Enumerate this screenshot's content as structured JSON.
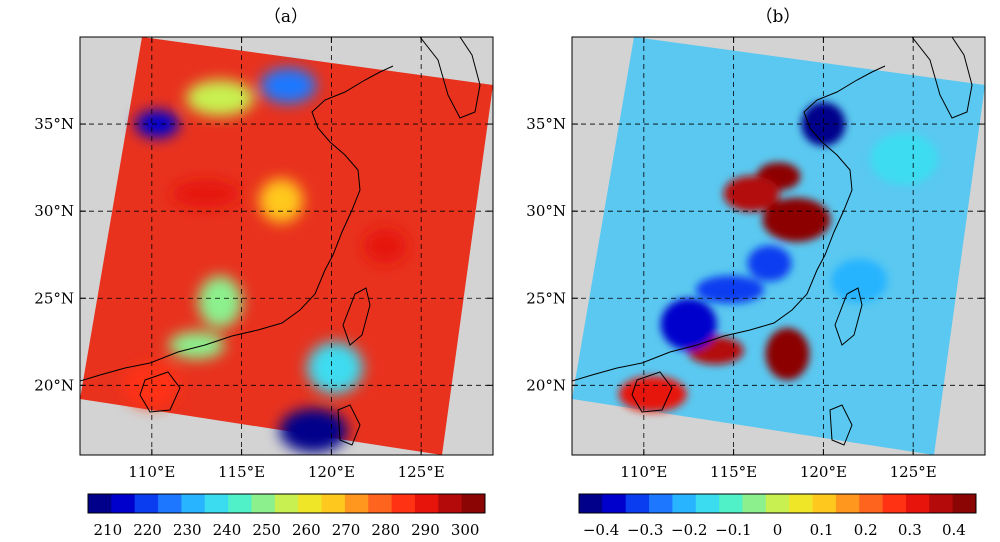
{
  "figure": {
    "panels": [
      {
        "label": "（a）",
        "lon_ticks": [
          "110°E",
          "115°E",
          "120°E",
          "125°E"
        ],
        "lat_ticks": [
          "20°N",
          "25°N",
          "30°N",
          "35°N"
        ],
        "colorbar_ticks": [
          "210",
          "220",
          "230",
          "240",
          "250",
          "260",
          "270",
          "280",
          "290",
          "300"
        ]
      },
      {
        "label": "（b）",
        "lon_ticks": [
          "110°E",
          "115°E",
          "120°E",
          "125°E"
        ],
        "lat_ticks": [
          "20°N",
          "25°N",
          "30°N",
          "35°N"
        ],
        "colorbar_ticks": [
          "−0.4",
          "−0.3",
          "−0.2",
          "−0.1",
          "0",
          "0.1",
          "0.2",
          "0.3",
          "0.4"
        ]
      }
    ]
  },
  "chart_data": [
    {
      "type": "heatmap",
      "title": "（a）",
      "xlabel": "",
      "ylabel": "",
      "xlim": [
        106,
        129
      ],
      "ylim": [
        16,
        40
      ],
      "x_ticks": [
        110,
        115,
        120,
        125
      ],
      "y_ticks": [
        20,
        25,
        30,
        35
      ],
      "grid": true,
      "grid_style": "dashed",
      "colorbar": {
        "orientation": "horizontal",
        "position": "bottom",
        "range": [
          205,
          305
        ],
        "ticks": [
          210,
          220,
          230,
          240,
          250,
          260,
          270,
          280,
          290,
          300
        ]
      },
      "colormap": [
        "#00008b",
        "#0000cd",
        "#0a3cf0",
        "#1e78ff",
        "#28b4ff",
        "#3cdcf0",
        "#50f0c8",
        "#8cf08c",
        "#c8f050",
        "#f0e628",
        "#ffc81e",
        "#ff961e",
        "#ff641e",
        "#ff3214",
        "#e6140a",
        "#b40a0a",
        "#8c0505"
      ],
      "swath_corners_lonlat": {
        "top_left": [
          108.5,
          39.0
        ],
        "top_right": [
          128.6,
          37.1
        ],
        "bottom_right": [
          126.4,
          16.8
        ],
        "bottom_left": [
          106.0,
          18.0
        ]
      },
      "field_features": [
        {
          "lon": 110.3,
          "lat": 35.0,
          "value": 215
        },
        {
          "lon": 117.6,
          "lat": 37.2,
          "value": 225
        },
        {
          "lon": 119.0,
          "lat": 17.4,
          "value": 210
        },
        {
          "lon": 113.8,
          "lat": 24.8,
          "value": 250
        },
        {
          "lon": 112.5,
          "lat": 22.3,
          "value": 250
        },
        {
          "lon": 113.8,
          "lat": 36.5,
          "value": 255
        },
        {
          "lon": 117.2,
          "lat": 30.6,
          "value": 265
        },
        {
          "lon": 120.2,
          "lat": 21.0,
          "value": 240
        },
        {
          "lon": 113.0,
          "lat": 31.0,
          "value": 290
        },
        {
          "lon": 123.0,
          "lat": 28.0,
          "value": 290
        },
        {
          "lon": 110.0,
          "lat": 20.0,
          "value": 285
        }
      ]
    },
    {
      "type": "heatmap",
      "title": "（b）",
      "xlabel": "",
      "ylabel": "",
      "xlim": [
        106,
        129
      ],
      "ylim": [
        16,
        40
      ],
      "x_ticks": [
        110,
        115,
        120,
        125
      ],
      "y_ticks": [
        20,
        25,
        30,
        35
      ],
      "grid": true,
      "grid_style": "dashed",
      "colorbar": {
        "orientation": "horizontal",
        "position": "bottom",
        "range": [
          -0.45,
          0.45
        ],
        "ticks": [
          -0.4,
          -0.3,
          -0.2,
          -0.1,
          0,
          0.1,
          0.2,
          0.3,
          0.4
        ]
      },
      "colormap": [
        "#00008b",
        "#0000cd",
        "#0a3cf0",
        "#1e78ff",
        "#28b4ff",
        "#3cdcf0",
        "#50f0c8",
        "#8cf08c",
        "#c8f050",
        "#f0e628",
        "#ffc81e",
        "#ff961e",
        "#ff641e",
        "#ff3214",
        "#e6140a",
        "#b40a0a",
        "#8c0505"
      ],
      "swath_corners_lonlat": {
        "top_left": [
          108.5,
          39.0
        ],
        "top_right": [
          128.6,
          37.1
        ],
        "bottom_right": [
          126.4,
          16.8
        ],
        "bottom_left": [
          106.0,
          18.0
        ]
      },
      "field_features": [
        {
          "lon": 117.5,
          "lat": 32.0,
          "value": 0.4
        },
        {
          "lon": 116.0,
          "lat": 31.0,
          "value": 0.35
        },
        {
          "lon": 118.5,
          "lat": 29.5,
          "value": 0.4
        },
        {
          "lon": 118.0,
          "lat": 21.8,
          "value": 0.4
        },
        {
          "lon": 114.0,
          "lat": 22.0,
          "value": 0.35
        },
        {
          "lon": 110.5,
          "lat": 19.5,
          "value": 0.3
        },
        {
          "lon": 120.0,
          "lat": 35.0,
          "value": -0.45
        },
        {
          "lon": 112.5,
          "lat": 23.5,
          "value": -0.35
        },
        {
          "lon": 114.8,
          "lat": 25.5,
          "value": -0.3
        },
        {
          "lon": 117.0,
          "lat": 27.0,
          "value": -0.3
        },
        {
          "lon": 122.0,
          "lat": 26.0,
          "value": -0.2
        },
        {
          "lon": 124.5,
          "lat": 33.0,
          "value": -0.15
        }
      ]
    }
  ]
}
